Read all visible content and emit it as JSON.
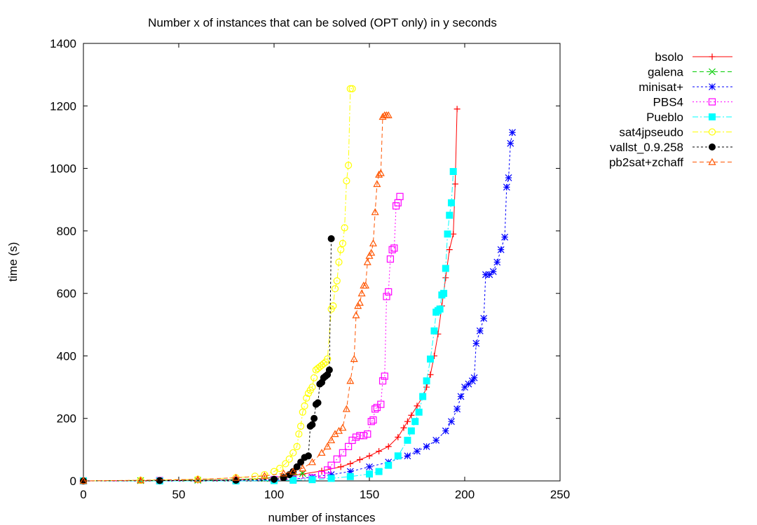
{
  "chart_data": {
    "type": "line",
    "title": "Number x of instances that can be solved (OPT only) in y seconds",
    "xlabel": "number of instances",
    "ylabel": "time (s)",
    "xlim": [
      0,
      250
    ],
    "ylim": [
      0,
      1400
    ],
    "xticks": [
      0,
      50,
      100,
      150,
      200,
      250
    ],
    "yticks": [
      0,
      200,
      400,
      600,
      800,
      1000,
      1200,
      1400
    ],
    "legend_position": "outside-right",
    "grid": false,
    "series": [
      {
        "name": "bsolo",
        "color": "#ff0000",
        "marker": "plus",
        "dash": "",
        "x": [
          0,
          30,
          60,
          80,
          95,
          105,
          115,
          125,
          135,
          140,
          145,
          150,
          155,
          160,
          165,
          168,
          170,
          172,
          175,
          178,
          180,
          182,
          184,
          186,
          188,
          190,
          192,
          194,
          195,
          196
        ],
        "y": [
          0,
          1,
          2,
          4,
          8,
          14,
          22,
          32,
          45,
          55,
          68,
          80,
          95,
          110,
          140,
          170,
          190,
          210,
          240,
          270,
          300,
          340,
          400,
          470,
          560,
          650,
          740,
          790,
          950,
          1190
        ]
      },
      {
        "name": "galena",
        "color": "#00cc00",
        "marker": "x",
        "dash": "6,4",
        "x": [
          0,
          30,
          60,
          80,
          95,
          105,
          110,
          115
        ],
        "y": [
          0,
          1,
          2,
          4,
          8,
          14,
          18,
          24
        ]
      },
      {
        "name": "minisat+",
        "color": "#0000ff",
        "marker": "star",
        "dash": "3,3",
        "x": [
          0,
          40,
          80,
          100,
          110,
          120,
          130,
          140,
          150,
          160,
          170,
          175,
          180,
          185,
          190,
          193,
          196,
          198,
          200,
          202,
          204,
          205,
          206,
          208,
          210,
          211,
          213,
          215,
          217,
          219,
          221,
          222,
          223,
          224,
          225
        ],
        "y": [
          0,
          0,
          1,
          3,
          6,
          12,
          20,
          30,
          45,
          60,
          80,
          95,
          110,
          130,
          160,
          190,
          230,
          270,
          300,
          310,
          320,
          330,
          440,
          480,
          520,
          660,
          660,
          670,
          700,
          740,
          780,
          940,
          970,
          1080,
          1115
        ]
      },
      {
        "name": "PBS4",
        "color": "#ff00ff",
        "marker": "square",
        "dash": "2,3",
        "x": [
          0,
          40,
          80,
          100,
          110,
          120,
          125,
          128,
          130,
          133,
          136,
          139,
          141,
          143,
          145,
          147,
          149,
          151,
          152,
          153,
          154,
          156,
          157,
          158,
          159,
          160,
          161,
          162,
          163,
          164,
          165,
          166
        ],
        "y": [
          0,
          1,
          2,
          4,
          6,
          10,
          20,
          35,
          50,
          70,
          90,
          110,
          130,
          140,
          145,
          145,
          150,
          190,
          195,
          230,
          235,
          245,
          320,
          335,
          590,
          605,
          710,
          740,
          745,
          880,
          890,
          910
        ]
      },
      {
        "name": "Pueblo",
        "color": "#00ffff",
        "marker": "fsquare",
        "dash": "8,3,2,3",
        "x": [
          0,
          40,
          80,
          100,
          110,
          120,
          130,
          140,
          150,
          155,
          160,
          165,
          170,
          172,
          174,
          176,
          178,
          180,
          182,
          184,
          185,
          186,
          187,
          188,
          189,
          190,
          191,
          192,
          193,
          194
        ],
        "y": [
          0,
          0,
          0,
          1,
          2,
          4,
          8,
          14,
          22,
          30,
          50,
          80,
          130,
          160,
          190,
          220,
          270,
          320,
          390,
          480,
          540,
          545,
          550,
          595,
          600,
          680,
          790,
          850,
          890,
          990
        ]
      },
      {
        "name": "sat4jpseudo",
        "color": "#ffff00",
        "marker": "circle",
        "dash": "8,3,2,3",
        "x": [
          0,
          30,
          60,
          80,
          90,
          95,
          100,
          103,
          106,
          108,
          110,
          112,
          113,
          114,
          115,
          116,
          117,
          118,
          119,
          120,
          121,
          122,
          123,
          124,
          125,
          126,
          127,
          128,
          130,
          131,
          132,
          133,
          134,
          135,
          136,
          137,
          138,
          139,
          140,
          141
        ],
        "y": [
          0,
          2,
          5,
          10,
          15,
          20,
          30,
          40,
          55,
          70,
          90,
          110,
          150,
          175,
          220,
          240,
          265,
          280,
          290,
          300,
          330,
          355,
          360,
          365,
          370,
          375,
          380,
          390,
          550,
          560,
          615,
          640,
          700,
          740,
          760,
          810,
          960,
          1010,
          1255,
          1255
        ]
      },
      {
        "name": "vallst_0.9.258",
        "color": "#000000",
        "marker": "fcircle",
        "dash": "3,3",
        "x": [
          0,
          40,
          80,
          100,
          105,
          108,
          110,
          112,
          114,
          116,
          118,
          119,
          120,
          121,
          122,
          123,
          124,
          125,
          126,
          127,
          128,
          129,
          130
        ],
        "y": [
          0,
          1,
          2,
          5,
          10,
          20,
          30,
          45,
          60,
          75,
          80,
          175,
          180,
          200,
          245,
          250,
          310,
          315,
          330,
          335,
          340,
          355,
          775
        ]
      },
      {
        "name": "pb2sat+zchaff",
        "color": "#ff5500",
        "marker": "triangle",
        "dash": "6,4",
        "x": [
          0,
          30,
          60,
          80,
          95,
          105,
          110,
          115,
          120,
          125,
          128,
          130,
          132,
          134,
          136,
          138,
          140,
          142,
          143,
          144,
          145,
          146,
          147,
          148,
          149,
          150,
          151,
          152,
          153,
          154,
          155,
          156,
          157,
          158,
          159,
          160
        ],
        "y": [
          0,
          2,
          5,
          10,
          16,
          24,
          30,
          40,
          60,
          90,
          110,
          130,
          150,
          160,
          170,
          230,
          320,
          390,
          530,
          560,
          570,
          600,
          625,
          625,
          700,
          720,
          730,
          760,
          860,
          950,
          980,
          985,
          1165,
          1170,
          1170,
          1170
        ]
      }
    ]
  }
}
